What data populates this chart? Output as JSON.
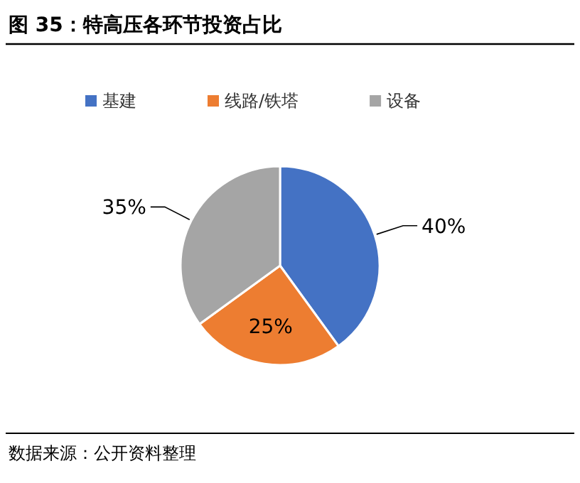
{
  "chart_data": {
    "type": "pie",
    "title": "图 35：特高压各环节投资占比",
    "categories": [
      "基建",
      "线路/铁塔",
      "设备"
    ],
    "values": [
      40,
      25,
      35
    ],
    "colors": [
      "#4472c4",
      "#ed7d31",
      "#a5a5a5"
    ],
    "value_labels": [
      "40%",
      "25%",
      "35%"
    ],
    "legend": "top",
    "annotations": [
      "数据来源：公开资料整理"
    ]
  }
}
